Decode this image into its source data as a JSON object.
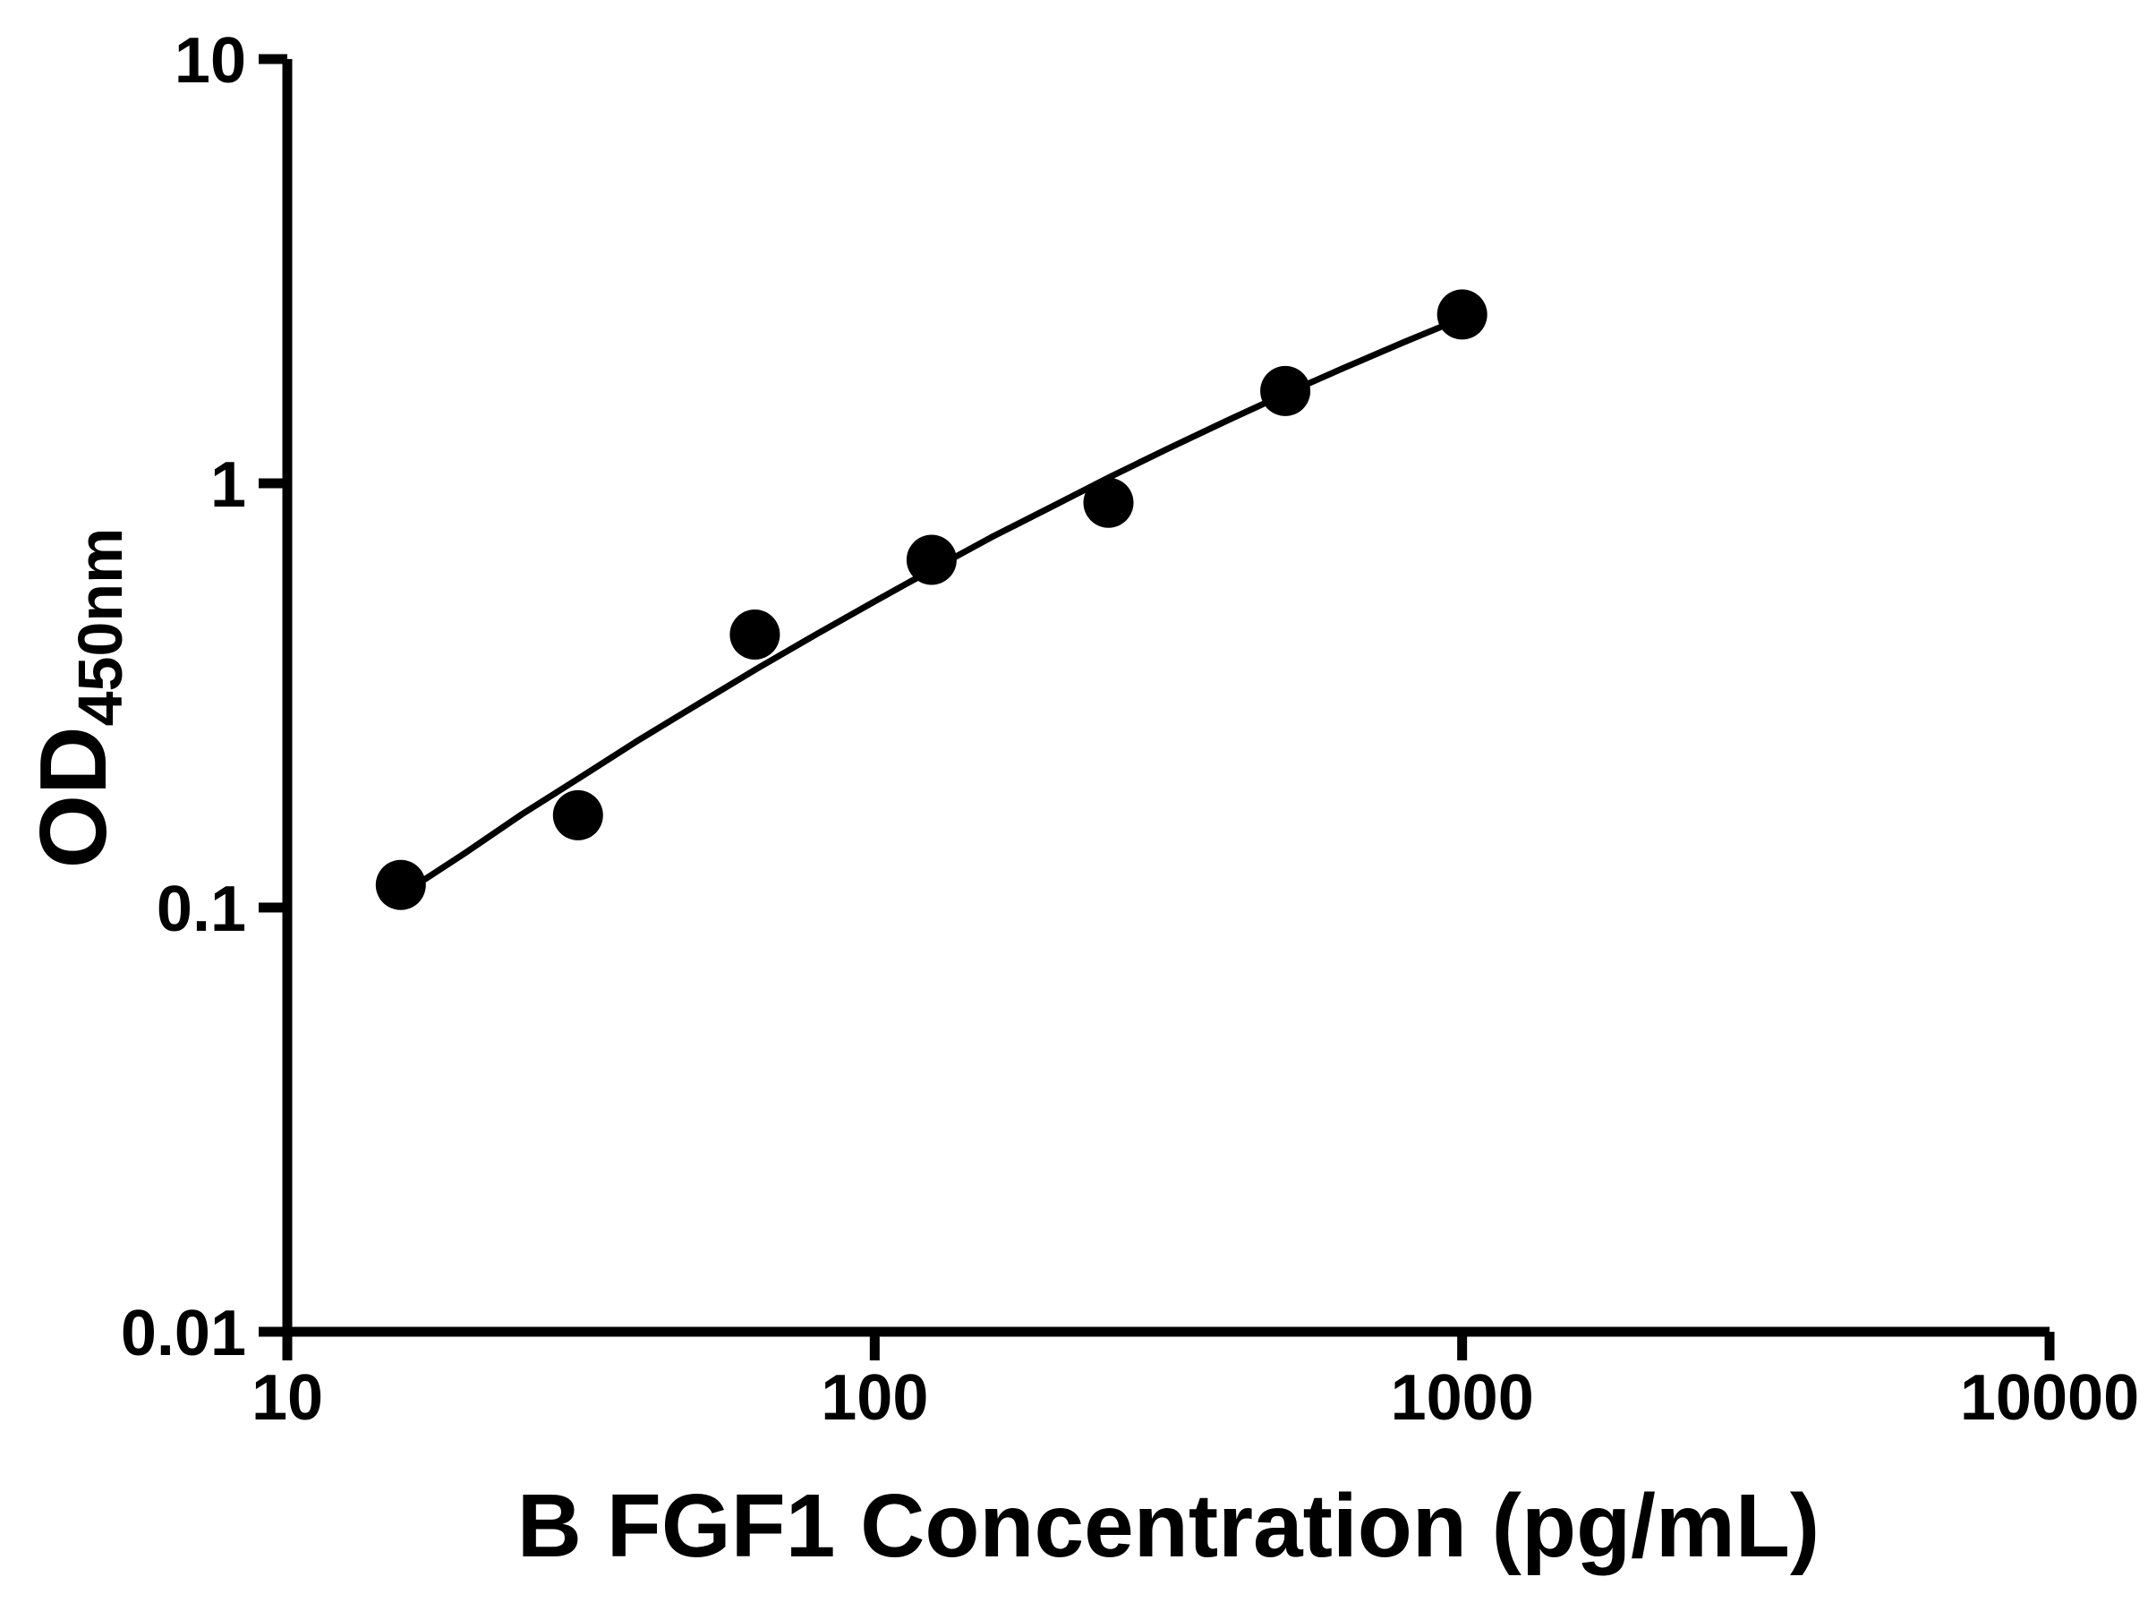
{
  "chart_data": {
    "type": "scatter",
    "title": "",
    "xlabel": "B FGF1 Concentration (pg/mL)",
    "ylabel_main": "OD",
    "ylabel_sub": "450nm",
    "x_scale": "log",
    "y_scale": "log",
    "xlim": [
      10,
      10000
    ],
    "ylim": [
      0.01,
      10
    ],
    "x_ticks": [
      10,
      100,
      1000,
      10000
    ],
    "x_tick_labels": [
      "10",
      "100",
      "1000",
      "10000"
    ],
    "y_ticks": [
      10,
      1,
      0.1,
      0.01
    ],
    "y_tick_labels": [
      "10",
      "1",
      "0.1",
      "0.01"
    ],
    "grid": false,
    "legend": false,
    "points": [
      [
        15.6,
        0.113
      ],
      [
        31.25,
        0.165
      ],
      [
        62.5,
        0.44
      ],
      [
        125,
        0.66
      ],
      [
        250,
        0.9
      ],
      [
        500,
        1.65
      ],
      [
        1000,
        2.5
      ]
    ],
    "trend": [
      [
        15.6,
        0.107
      ],
      [
        20,
        0.134
      ],
      [
        25.1,
        0.166
      ],
      [
        31.6,
        0.203
      ],
      [
        39.8,
        0.249
      ],
      [
        50.1,
        0.302
      ],
      [
        63.1,
        0.366
      ],
      [
        79.4,
        0.44
      ],
      [
        100,
        0.527
      ],
      [
        126,
        0.629
      ],
      [
        158,
        0.746
      ],
      [
        200,
        0.88
      ],
      [
        251,
        1.034
      ],
      [
        316,
        1.208
      ],
      [
        398,
        1.406
      ],
      [
        501,
        1.628
      ],
      [
        631,
        1.874
      ],
      [
        794,
        2.148
      ],
      [
        1000,
        2.451
      ]
    ],
    "marker_color": "#000000",
    "line_color": "#000000",
    "axis_color": "#000000",
    "background": "#ffffff"
  }
}
